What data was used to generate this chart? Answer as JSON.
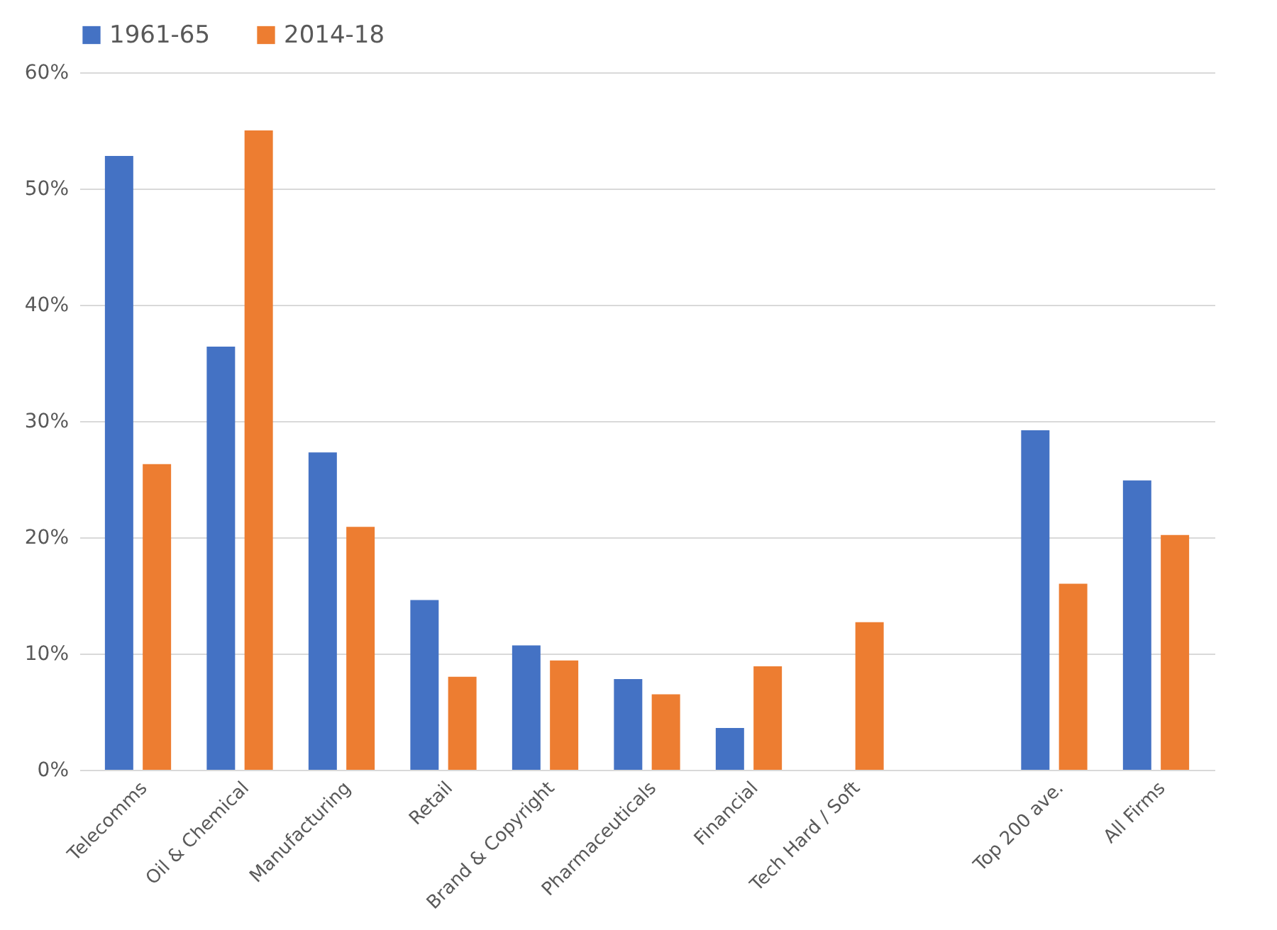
{
  "chart_data": {
    "type": "bar",
    "categories": [
      "Telecomms",
      "Oil & Chemical",
      "Manufacturing",
      "Retail",
      "Brand & Copyright",
      "Pharmaceuticals",
      "Financial",
      "Tech Hard / Soft",
      null,
      "Top 200 ave.",
      "All Firms"
    ],
    "series": [
      {
        "name": "1961-65",
        "color": "#4472c4",
        "values": [
          52.8,
          36.4,
          27.3,
          14.6,
          10.7,
          7.8,
          3.6,
          null,
          null,
          29.2,
          24.9
        ]
      },
      {
        "name": "2014-18",
        "color": "#ed7d31",
        "values": [
          26.3,
          55.0,
          20.9,
          8.0,
          9.4,
          6.5,
          8.9,
          12.7,
          null,
          16.0,
          20.2
        ]
      }
    ],
    "ylim": [
      0,
      60
    ],
    "yticks": [
      {
        "value": 0,
        "label": "0%"
      },
      {
        "value": 10,
        "label": "10%"
      },
      {
        "value": 20,
        "label": "20%"
      },
      {
        "value": 30,
        "label": "30%"
      },
      {
        "value": 40,
        "label": "40%"
      },
      {
        "value": 50,
        "label": "50%"
      },
      {
        "value": 60,
        "label": "60%"
      }
    ],
    "grid": "y",
    "legend": "top"
  }
}
